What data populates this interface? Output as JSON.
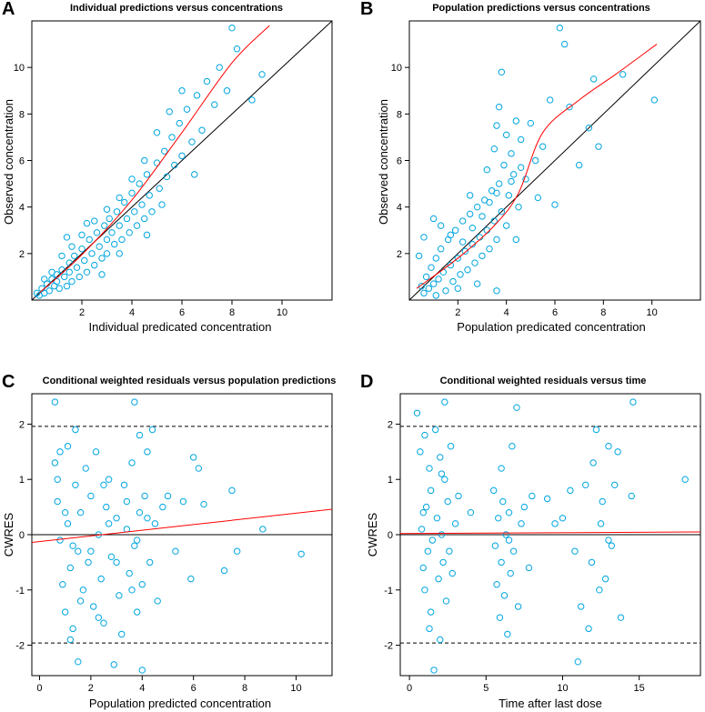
{
  "chart_data": [
    {
      "type": "scatter",
      "panel": "A",
      "title": "Individual predictions versus concentrations",
      "xlabel": "Individual predicated concentration",
      "ylabel": "Observed concentration",
      "xlim": [
        0,
        12
      ],
      "ylim": [
        0,
        12
      ],
      "xticks": [
        2,
        4,
        6,
        8,
        10
      ],
      "yticks": [
        2,
        4,
        6,
        8,
        10
      ],
      "reference_line": "identity",
      "points": [
        [
          0.2,
          0.3
        ],
        [
          0.3,
          0.2
        ],
        [
          0.4,
          0.5
        ],
        [
          0.5,
          0.3
        ],
        [
          0.6,
          0.7
        ],
        [
          0.7,
          0.4
        ],
        [
          0.8,
          0.9
        ],
        [
          0.9,
          0.6
        ],
        [
          1.0,
          1.1
        ],
        [
          1.0,
          0.8
        ],
        [
          1.1,
          0.5
        ],
        [
          1.2,
          1.3
        ],
        [
          1.3,
          1.0
        ],
        [
          1.4,
          0.6
        ],
        [
          1.5,
          1.6
        ],
        [
          1.5,
          1.2
        ],
        [
          1.6,
          0.8
        ],
        [
          1.7,
          1.9
        ],
        [
          1.8,
          1.4
        ],
        [
          1.9,
          1.0
        ],
        [
          2.0,
          2.2
        ],
        [
          2.1,
          1.7
        ],
        [
          2.2,
          1.2
        ],
        [
          2.3,
          2.6
        ],
        [
          2.4,
          2.0
        ],
        [
          2.5,
          1.5
        ],
        [
          2.6,
          2.9
        ],
        [
          2.7,
          2.3
        ],
        [
          2.8,
          1.8
        ],
        [
          2.9,
          3.2
        ],
        [
          3.0,
          2.6
        ],
        [
          3.0,
          2.0
        ],
        [
          3.1,
          3.5
        ],
        [
          3.2,
          2.9
        ],
        [
          3.3,
          2.4
        ],
        [
          3.4,
          3.8
        ],
        [
          3.5,
          3.2
        ],
        [
          3.6,
          2.6
        ],
        [
          3.7,
          4.2
        ],
        [
          3.8,
          3.5
        ],
        [
          3.9,
          2.9
        ],
        [
          4.0,
          4.6
        ],
        [
          4.1,
          3.8
        ],
        [
          4.2,
          3.2
        ],
        [
          4.3,
          5.0
        ],
        [
          4.4,
          4.1
        ],
        [
          4.5,
          3.5
        ],
        [
          4.6,
          5.4
        ],
        [
          4.7,
          4.5
        ],
        [
          4.8,
          3.8
        ],
        [
          5.0,
          5.9
        ],
        [
          5.1,
          4.8
        ],
        [
          5.3,
          6.4
        ],
        [
          5.4,
          5.3
        ],
        [
          5.6,
          7.0
        ],
        [
          5.7,
          5.8
        ],
        [
          5.9,
          7.6
        ],
        [
          6.0,
          6.2
        ],
        [
          6.2,
          8.2
        ],
        [
          6.4,
          6.8
        ],
        [
          6.6,
          8.8
        ],
        [
          6.8,
          7.3
        ],
        [
          7.0,
          9.4
        ],
        [
          7.3,
          8.4
        ],
        [
          7.5,
          10.0
        ],
        [
          7.8,
          9.0
        ],
        [
          8.0,
          11.7
        ],
        [
          8.2,
          10.8
        ],
        [
          8.8,
          8.6
        ],
        [
          9.2,
          9.7
        ],
        [
          0.5,
          0.9
        ],
        [
          0.8,
          1.2
        ],
        [
          1.2,
          1.9
        ],
        [
          1.6,
          2.3
        ],
        [
          2.0,
          2.8
        ],
        [
          2.5,
          3.4
        ],
        [
          3.0,
          3.9
        ],
        [
          3.5,
          4.4
        ],
        [
          4.0,
          5.2
        ],
        [
          4.5,
          6.0
        ],
        [
          5.0,
          7.2
        ],
        [
          5.5,
          8.1
        ],
        [
          6.0,
          9.0
        ],
        [
          6.5,
          5.4
        ],
        [
          3.5,
          2.0
        ],
        [
          2.8,
          1.1
        ],
        [
          4.6,
          2.8
        ],
        [
          5.2,
          4.1
        ],
        [
          1.4,
          2.7
        ],
        [
          2.2,
          3.3
        ]
      ],
      "smooth": [
        [
          0.3,
          0.3
        ],
        [
          2,
          1.95
        ],
        [
          4,
          4.3
        ],
        [
          6,
          7.2
        ],
        [
          8,
          10.2
        ],
        [
          9.5,
          11.8
        ]
      ]
    },
    {
      "type": "scatter",
      "panel": "B",
      "title": "Population predictions versus concentrations",
      "xlabel": "Population predicated concentration",
      "ylabel": "Observed concentration",
      "xlim": [
        0,
        12
      ],
      "ylim": [
        0,
        12
      ],
      "xticks": [
        2,
        4,
        6,
        8,
        10
      ],
      "yticks": [
        2,
        4,
        6,
        8,
        10
      ],
      "reference_line": "identity",
      "points": [
        [
          0.5,
          0.6
        ],
        [
          0.6,
          0.3
        ],
        [
          0.7,
          1.0
        ],
        [
          0.8,
          0.5
        ],
        [
          0.9,
          1.4
        ],
        [
          1.0,
          0.7
        ],
        [
          1.1,
          1.8
        ],
        [
          1.2,
          0.9
        ],
        [
          1.3,
          2.2
        ],
        [
          1.4,
          1.2
        ],
        [
          1.5,
          0.4
        ],
        [
          1.6,
          2.6
        ],
        [
          1.7,
          1.5
        ],
        [
          1.8,
          0.8
        ],
        [
          1.9,
          3.0
        ],
        [
          2.0,
          1.8
        ],
        [
          2.1,
          1.1
        ],
        [
          2.2,
          3.4
        ],
        [
          2.3,
          2.1
        ],
        [
          2.4,
          1.3
        ],
        [
          2.5,
          3.7
        ],
        [
          2.6,
          2.4
        ],
        [
          2.7,
          1.6
        ],
        [
          2.8,
          4.0
        ],
        [
          2.9,
          2.7
        ],
        [
          3.0,
          1.9
        ],
        [
          3.1,
          4.3
        ],
        [
          3.2,
          3.0
        ],
        [
          3.3,
          2.2
        ],
        [
          3.4,
          4.7
        ],
        [
          3.5,
          3.4
        ],
        [
          3.5,
          6.5
        ],
        [
          3.6,
          2.6
        ],
        [
          3.6,
          7.5
        ],
        [
          3.7,
          5.0
        ],
        [
          3.7,
          8.3
        ],
        [
          3.8,
          3.8
        ],
        [
          3.8,
          9.8
        ],
        [
          3.9,
          5.8
        ],
        [
          4.0,
          7.1
        ],
        [
          4.0,
          3.2
        ],
        [
          4.1,
          4.5
        ],
        [
          4.2,
          6.3
        ],
        [
          4.3,
          5.4
        ],
        [
          4.4,
          7.7
        ],
        [
          4.5,
          4.0
        ],
        [
          4.6,
          6.9
        ],
        [
          4.8,
          5.2
        ],
        [
          5.0,
          7.6
        ],
        [
          5.2,
          6.0
        ],
        [
          5.5,
          6.6
        ],
        [
          5.8,
          8.6
        ],
        [
          6.0,
          4.1
        ],
        [
          6.2,
          11.7
        ],
        [
          6.4,
          11.0
        ],
        [
          6.6,
          8.3
        ],
        [
          7.0,
          5.8
        ],
        [
          7.4,
          7.4
        ],
        [
          7.6,
          9.5
        ],
        [
          7.8,
          6.6
        ],
        [
          8.8,
          9.7
        ],
        [
          10.1,
          8.6
        ],
        [
          0.4,
          1.9
        ],
        [
          0.6,
          2.7
        ],
        [
          1.0,
          3.5
        ],
        [
          1.3,
          3.2
        ],
        [
          1.7,
          2.8
        ],
        [
          2.2,
          2.5
        ],
        [
          2.6,
          3.1
        ],
        [
          3.0,
          3.6
        ],
        [
          3.3,
          4.2
        ],
        [
          3.6,
          4.6
        ],
        [
          4.2,
          5.1
        ],
        [
          4.6,
          5.7
        ],
        [
          2.0,
          0.5
        ],
        [
          2.8,
          0.7
        ],
        [
          3.6,
          0.4
        ],
        [
          1.1,
          0.2
        ],
        [
          4.4,
          2.6
        ],
        [
          5.3,
          4.4
        ],
        [
          3.2,
          5.6
        ],
        [
          2.5,
          4.5
        ]
      ],
      "smooth": [
        [
          0.3,
          0.5
        ],
        [
          2,
          1.8
        ],
        [
          3.5,
          3.2
        ],
        [
          4.5,
          4.6
        ],
        [
          5.5,
          7.2
        ],
        [
          7,
          8.6
        ],
        [
          8.5,
          9.7
        ],
        [
          10.2,
          11.0
        ]
      ]
    },
    {
      "type": "scatter",
      "panel": "C",
      "title": "Conditional weighted residuals versus population predictions",
      "xlabel": "Population predicted concentration",
      "ylabel": "CWRES",
      "xlim": [
        -0.3,
        11.4
      ],
      "ylim": [
        -2.55,
        2.55
      ],
      "xticks": [
        0,
        2,
        4,
        6,
        8,
        10
      ],
      "yticks": [
        -2,
        -1,
        0,
        1,
        2
      ],
      "reference_line": "zero",
      "dashed_lines": [
        -1.96,
        1.96
      ],
      "points": [
        [
          0.6,
          2.4
        ],
        [
          0.6,
          1.3
        ],
        [
          0.7,
          0.6
        ],
        [
          0.8,
          -0.1
        ],
        [
          0.9,
          -0.9
        ],
        [
          1.0,
          -1.4
        ],
        [
          1.1,
          1.6
        ],
        [
          1.1,
          0.2
        ],
        [
          1.2,
          -0.6
        ],
        [
          1.3,
          -1.7
        ],
        [
          1.4,
          0.9
        ],
        [
          1.4,
          1.9
        ],
        [
          1.5,
          -0.3
        ],
        [
          1.5,
          -2.3
        ],
        [
          1.6,
          0.4
        ],
        [
          1.7,
          -1.0
        ],
        [
          1.8,
          1.2
        ],
        [
          1.9,
          -0.5
        ],
        [
          2.0,
          0.7
        ],
        [
          2.1,
          -1.3
        ],
        [
          2.2,
          1.5
        ],
        [
          2.3,
          0.0
        ],
        [
          2.4,
          -0.8
        ],
        [
          2.5,
          -1.6
        ],
        [
          2.6,
          0.5
        ],
        [
          2.7,
          1.0
        ],
        [
          2.8,
          -0.4
        ],
        [
          2.9,
          -2.35
        ],
        [
          3.0,
          0.3
        ],
        [
          3.1,
          -1.1
        ],
        [
          3.2,
          -1.8
        ],
        [
          3.3,
          0.9
        ],
        [
          3.4,
          0.1
        ],
        [
          3.5,
          -0.7
        ],
        [
          3.6,
          1.3
        ],
        [
          3.7,
          2.4
        ],
        [
          3.7,
          -0.2
        ],
        [
          3.8,
          -1.4
        ],
        [
          3.9,
          1.8
        ],
        [
          3.9,
          0.4
        ],
        [
          4.0,
          -0.9
        ],
        [
          4.0,
          -2.45
        ],
        [
          4.1,
          0.7
        ],
        [
          4.2,
          1.5
        ],
        [
          4.3,
          -0.5
        ],
        [
          4.4,
          1.9
        ],
        [
          4.5,
          0.2
        ],
        [
          4.6,
          -1.2
        ],
        [
          4.8,
          0.5
        ],
        [
          5.0,
          0.7
        ],
        [
          5.3,
          -0.3
        ],
        [
          5.6,
          0.6
        ],
        [
          5.9,
          -0.8
        ],
        [
          6.0,
          1.4
        ],
        [
          6.2,
          1.2
        ],
        [
          6.4,
          0.55
        ],
        [
          7.2,
          -0.65
        ],
        [
          7.5,
          0.8
        ],
        [
          7.7,
          -0.3
        ],
        [
          8.7,
          0.1
        ],
        [
          10.2,
          -0.35
        ],
        [
          0.7,
          1.0
        ],
        [
          1.0,
          0.4
        ],
        [
          1.3,
          -0.2
        ],
        [
          1.6,
          -1.2
        ],
        [
          2.0,
          -0.3
        ],
        [
          2.5,
          0.9
        ],
        [
          3.0,
          -0.5
        ],
        [
          3.4,
          0.6
        ],
        [
          3.8,
          -0.1
        ],
        [
          4.2,
          0.3
        ],
        [
          1.2,
          -1.9
        ],
        [
          2.3,
          -1.5
        ],
        [
          3.6,
          -1.0
        ],
        [
          0.8,
          1.5
        ],
        [
          2.7,
          0.2
        ]
      ],
      "smooth": [
        [
          -0.3,
          -0.14
        ],
        [
          11.4,
          0.46
        ]
      ]
    },
    {
      "type": "scatter",
      "panel": "D",
      "title": "Conditional weighted residuals versus time",
      "xlabel": "Time after last dose",
      "ylabel": "CWRES",
      "xlim": [
        -0.6,
        19.0
      ],
      "ylim": [
        -2.55,
        2.55
      ],
      "xticks": [
        0,
        5,
        10,
        15
      ],
      "yticks": [
        -2,
        -1,
        0,
        1,
        2
      ],
      "reference_line": "zero",
      "dashed_lines": [
        -1.96,
        1.96
      ],
      "points": [
        [
          0.5,
          2.2
        ],
        [
          0.7,
          1.5
        ],
        [
          0.8,
          0.1
        ],
        [
          0.9,
          -0.6
        ],
        [
          1.0,
          1.8
        ],
        [
          1.0,
          -1.0
        ],
        [
          1.1,
          0.5
        ],
        [
          1.2,
          -0.3
        ],
        [
          1.3,
          1.2
        ],
        [
          1.3,
          -1.7
        ],
        [
          1.4,
          0.8
        ],
        [
          1.5,
          -0.1
        ],
        [
          1.6,
          -2.45
        ],
        [
          1.7,
          1.9
        ],
        [
          1.8,
          0.3
        ],
        [
          1.9,
          -0.8
        ],
        [
          2.0,
          1.4
        ],
        [
          2.0,
          -1.9
        ],
        [
          2.1,
          0.0
        ],
        [
          2.2,
          -0.5
        ],
        [
          2.3,
          2.4
        ],
        [
          2.3,
          1.0
        ],
        [
          2.4,
          -1.2
        ],
        [
          2.5,
          0.6
        ],
        [
          2.6,
          -0.3
        ],
        [
          2.7,
          1.6
        ],
        [
          2.8,
          -0.7
        ],
        [
          3.0,
          0.2
        ],
        [
          3.2,
          0.7
        ],
        [
          4.0,
          0.4
        ],
        [
          5.5,
          0.8
        ],
        [
          5.6,
          -0.2
        ],
        [
          5.7,
          -0.9
        ],
        [
          5.8,
          0.3
        ],
        [
          5.9,
          -1.5
        ],
        [
          6.0,
          1.2
        ],
        [
          6.0,
          -0.5
        ],
        [
          6.1,
          0.6
        ],
        [
          6.2,
          -1.1
        ],
        [
          6.3,
          0.0
        ],
        [
          6.4,
          -1.8
        ],
        [
          6.5,
          0.4
        ],
        [
          6.6,
          -0.7
        ],
        [
          6.7,
          1.6
        ],
        [
          6.8,
          -0.3
        ],
        [
          7.0,
          2.3
        ],
        [
          7.1,
          -1.3
        ],
        [
          7.3,
          0.2
        ],
        [
          7.5,
          0.5
        ],
        [
          7.8,
          -0.6
        ],
        [
          8.0,
          0.7
        ],
        [
          9.0,
          0.65
        ],
        [
          9.5,
          0.2
        ],
        [
          10.0,
          0.3
        ],
        [
          10.5,
          0.8
        ],
        [
          10.8,
          -0.3
        ],
        [
          11.0,
          -2.3
        ],
        [
          11.2,
          -1.3
        ],
        [
          11.5,
          0.9
        ],
        [
          11.7,
          -1.7
        ],
        [
          11.9,
          -0.5
        ],
        [
          12.0,
          1.3
        ],
        [
          12.2,
          1.9
        ],
        [
          12.4,
          -1.0
        ],
        [
          12.6,
          0.6
        ],
        [
          12.8,
          -0.8
        ],
        [
          13.0,
          1.6
        ],
        [
          13.2,
          -0.2
        ],
        [
          13.4,
          0.9
        ],
        [
          13.6,
          1.5
        ],
        [
          13.8,
          -1.5
        ],
        [
          14.5,
          0.7
        ],
        [
          14.6,
          2.4
        ],
        [
          18.0,
          1.0
        ],
        [
          0.9,
          0.4
        ],
        [
          1.4,
          -1.4
        ],
        [
          2.1,
          1.1
        ],
        [
          6.5,
          -0.1
        ],
        [
          12.5,
          0.2
        ],
        [
          13.0,
          -0.1
        ]
      ],
      "smooth": [
        [
          -0.6,
          0.02
        ],
        [
          19.0,
          0.05
        ]
      ]
    }
  ]
}
